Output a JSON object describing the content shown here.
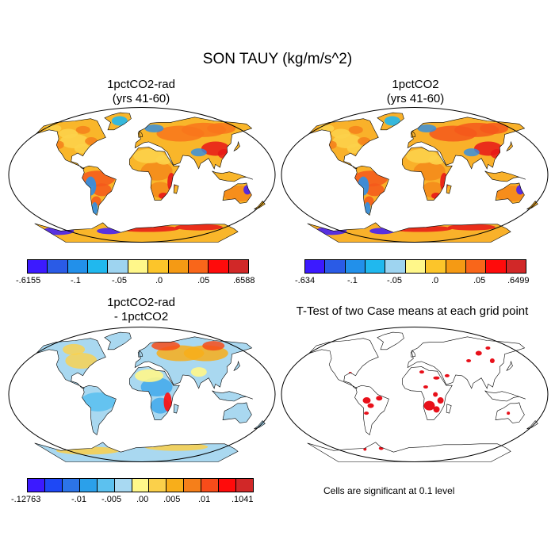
{
  "title": "SON TAUY (kg/m/s^2)",
  "panels": {
    "p1": {
      "title_line1": "1pctCO2-rad",
      "title_line2": "(yrs 41-60)"
    },
    "p2": {
      "title_line1": "1pctCO2",
      "title_line2": "(yrs 41-60)"
    },
    "p3": {
      "title_line1": "1pctCO2-rad",
      "title_line2": "- 1pctCO2"
    },
    "p4": {
      "title_line1": "T-Test of two Case means at each grid point"
    }
  },
  "colorbars": {
    "cb1": {
      "colors": [
        "#3c1aff",
        "#2a5be6",
        "#2290ea",
        "#20b8ee",
        "#9ed4f0",
        "#fff78a",
        "#fcc52a",
        "#f59a14",
        "#f9661a",
        "#ff0b0b",
        "#d12828"
      ],
      "labels": [
        "-.6155",
        "-.1",
        "-.05",
        ".0",
        ".05",
        ".6588"
      ]
    },
    "cb2": {
      "colors": [
        "#3c1aff",
        "#2a5be6",
        "#2290ea",
        "#20b8ee",
        "#9ed4f0",
        "#fff78a",
        "#fcc52a",
        "#f59a14",
        "#f9661a",
        "#ff0b0b",
        "#d12828"
      ],
      "labels": [
        "-.634",
        "-.1",
        "-.05",
        ".0",
        ".05",
        ".6499"
      ]
    },
    "cb3": {
      "colors": [
        "#3c1aff",
        "#1e48f5",
        "#2c74e8",
        "#2ba0ea",
        "#5cc1ef",
        "#a8d9f2",
        "#fff78a",
        "#fbd04a",
        "#f8ae1a",
        "#f57f1a",
        "#f74c1a",
        "#ff0b0b",
        "#d12828"
      ],
      "labels": [
        "-.12763",
        "-.01",
        "-.005",
        ".00",
        ".005",
        ".01",
        ".1041"
      ]
    }
  },
  "note": "Cells are significant at 0.1 level",
  "colors": {
    "significant": "#e8101a",
    "ocean": "#ffffff",
    "outline": "#000000"
  }
}
